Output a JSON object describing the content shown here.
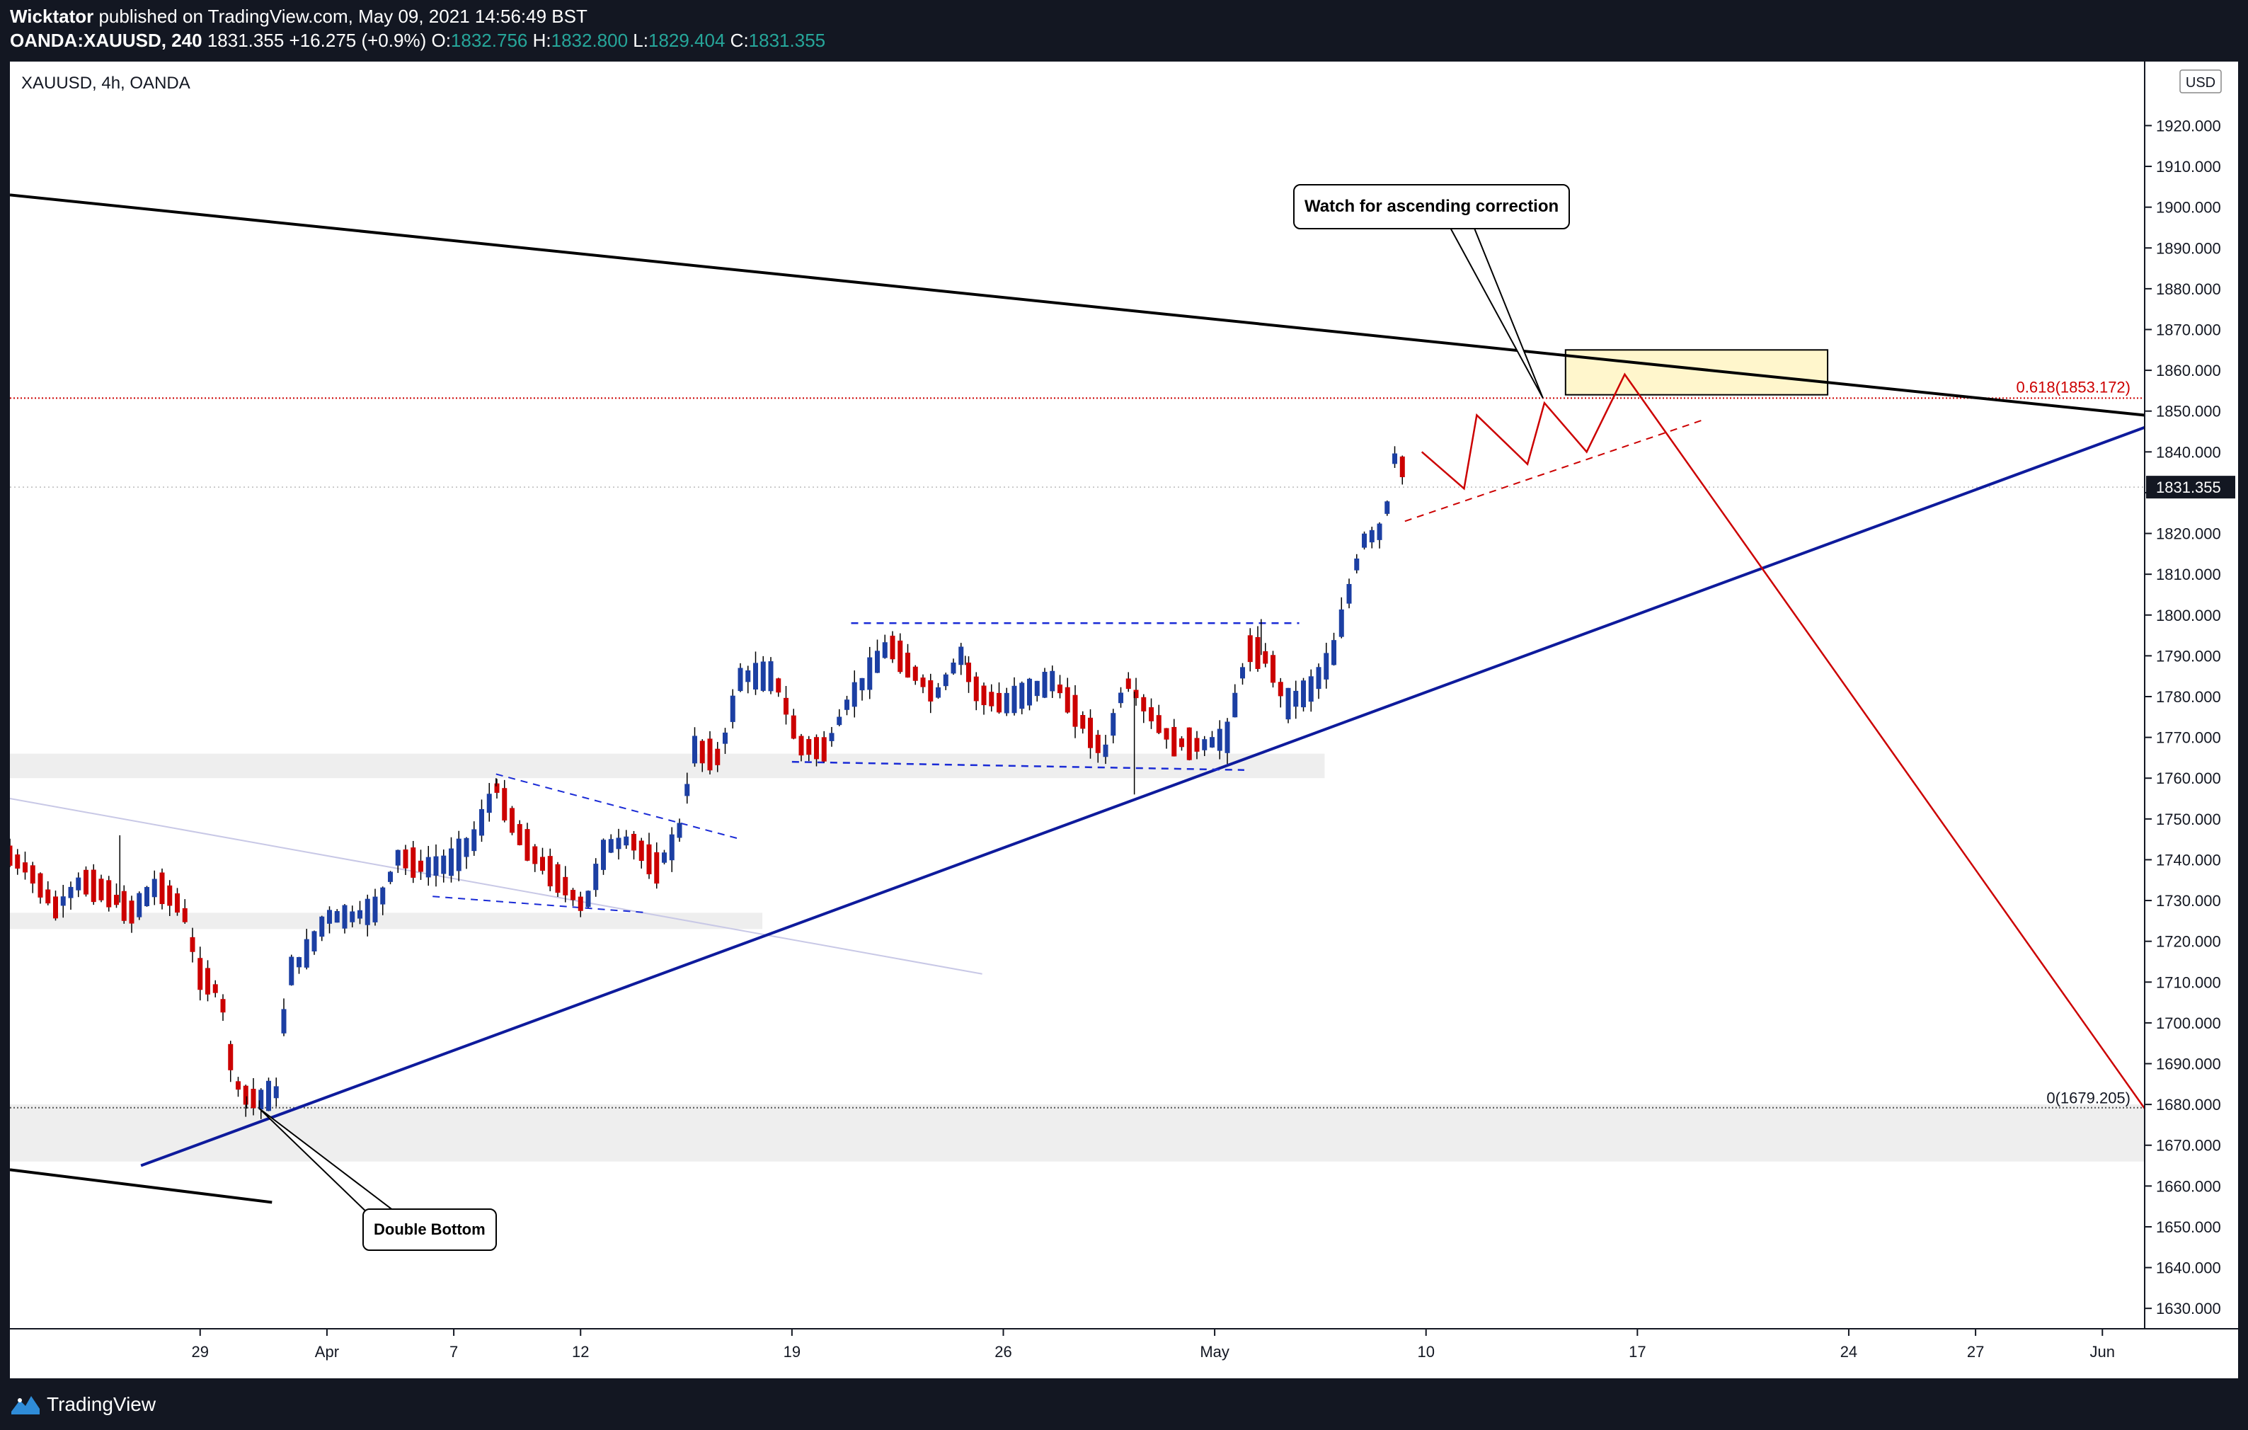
{
  "header": {
    "author": "Wicktator",
    "published_text": " published on TradingView.com, May 09, 2021 14:56:49 BST",
    "symbol": "OANDA:XAUUSD, 240",
    "last": "1831.355",
    "change": "+16.275 (+0.9%)",
    "o_label": "O:",
    "o_value": "1832.756",
    "h_label": "H:",
    "h_value": "1832.800",
    "l_label": "L:",
    "l_value": "1829.404",
    "c_label": "C:",
    "c_value": "1831.355"
  },
  "chart_title": "XAUUSD, 4h, OANDA",
  "currency_badge": "USD",
  "price_label": "1831.355",
  "fib_labels": {
    "top": "0.618(1853.172)",
    "bottom": "0(1679.205)"
  },
  "annotations": {
    "top": "Watch for ascending correction",
    "bottom": "Double Bottom"
  },
  "footer": {
    "brand": "TradingView"
  },
  "colors": {
    "up": "#1c3fa3",
    "down": "#cc0000",
    "trend": "#0e1b9c",
    "fib": "#cc0000",
    "zone": "#fff6cc"
  },
  "chart_data": {
    "type": "candlestick",
    "title": "XAUUSD, 4h, OANDA",
    "ylim": [
      1625,
      1935
    ],
    "y_ticks": [
      1630,
      1640,
      1650,
      1660,
      1670,
      1680,
      1690,
      1700,
      1710,
      1720,
      1730,
      1740,
      1750,
      1760,
      1770,
      1780,
      1790,
      1800,
      1810,
      1820,
      1830,
      1840,
      1850,
      1860,
      1870,
      1880,
      1890,
      1900,
      1910,
      1920
    ],
    "x_ticks": [
      "29",
      "Apr",
      "7",
      "12",
      "19",
      "26",
      "May",
      "10",
      "17",
      "24",
      "27",
      "Jun"
    ],
    "x_tick_days": [
      5,
      8,
      11,
      14,
      19,
      24,
      29,
      34,
      39,
      44,
      47,
      50
    ],
    "xlim": [
      0.5,
      51
    ],
    "last_price": 1831.355,
    "fib_levels": [
      {
        "label": "0.618(1853.172)",
        "value": 1853.172
      },
      {
        "label": "0(1679.205)",
        "value": 1679.205
      }
    ],
    "path": [
      [
        0.5,
        1741
      ],
      [
        1.0,
        1737
      ],
      [
        1.6,
        1728
      ],
      [
        2.2,
        1735
      ],
      [
        2.8,
        1732
      ],
      [
        3.4,
        1727
      ],
      [
        4.0,
        1734
      ],
      [
        4.6,
        1728
      ],
      [
        5.0,
        1712
      ],
      [
        5.5,
        1707
      ],
      [
        5.8,
        1686
      ],
      [
        6.1,
        1682
      ],
      [
        6.4,
        1681
      ],
      [
        6.8,
        1683
      ],
      [
        7.1,
        1712
      ],
      [
        7.6,
        1718
      ],
      [
        8.0,
        1726
      ],
      [
        8.6,
        1726
      ],
      [
        9.2,
        1728
      ],
      [
        9.7,
        1741
      ],
      [
        10.3,
        1738
      ],
      [
        10.9,
        1739
      ],
      [
        11.5,
        1745
      ],
      [
        12.0,
        1758
      ],
      [
        12.5,
        1747
      ],
      [
        13.0,
        1740
      ],
      [
        13.6,
        1734
      ],
      [
        14.1,
        1728
      ],
      [
        14.6,
        1743
      ],
      [
        15.2,
        1745
      ],
      [
        15.8,
        1738
      ],
      [
        16.3,
        1745
      ],
      [
        16.7,
        1767
      ],
      [
        17.3,
        1765
      ],
      [
        17.8,
        1785
      ],
      [
        18.6,
        1785
      ],
      [
        19.2,
        1768
      ],
      [
        19.8,
        1767
      ],
      [
        20.3,
        1778
      ],
      [
        20.8,
        1785
      ],
      [
        21.3,
        1793
      ],
      [
        21.8,
        1787
      ],
      [
        22.4,
        1780
      ],
      [
        23.0,
        1790
      ],
      [
        23.4,
        1781
      ],
      [
        24.0,
        1778
      ],
      [
        24.6,
        1781
      ],
      [
        25.2,
        1784
      ],
      [
        25.8,
        1775
      ],
      [
        26.4,
        1766
      ],
      [
        26.9,
        1784
      ],
      [
        27.4,
        1777
      ],
      [
        28.0,
        1769
      ],
      [
        28.7,
        1768
      ],
      [
        29.3,
        1770
      ],
      [
        29.8,
        1792
      ],
      [
        30.3,
        1789
      ],
      [
        30.7,
        1778
      ],
      [
        31.3,
        1782
      ],
      [
        31.8,
        1790
      ],
      [
        32.5,
        1818
      ],
      [
        33.0,
        1821
      ],
      [
        33.3,
        1841
      ],
      [
        33.6,
        1831
      ]
    ],
    "up_days": [
      7.1,
      7.6,
      8.0,
      9.0,
      9.7,
      11.5,
      12.0,
      14.6,
      16.3,
      16.7,
      17.3,
      17.8,
      20.3,
      20.8,
      21.3,
      23.0,
      25.2,
      26.9,
      28.7,
      29.3,
      29.8,
      31.3,
      31.8,
      32.5,
      33.0,
      33.3
    ],
    "wick_extremes": [
      [
        3.1,
        1746
      ],
      [
        23.1,
        1790
      ],
      [
        27.1,
        1756
      ],
      [
        30.1,
        1799
      ],
      [
        12.0,
        1760
      ],
      [
        6.1,
        1679
      ],
      [
        6.4,
        1679
      ]
    ],
    "overlays": {
      "descending_trendline": [
        [
          0.5,
          1903
        ],
        [
          51,
          1849
        ]
      ],
      "lower_black_line": [
        [
          0.5,
          1664
        ],
        [
          6.7,
          1656
        ]
      ],
      "ascending_trendline": [
        [
          3.6,
          1665
        ],
        [
          51,
          1846
        ]
      ],
      "faint_line": [
        [
          0.5,
          1755
        ],
        [
          23.5,
          1712
        ]
      ],
      "support_zones": [
        {
          "x": [
            0.5,
            31.6
          ],
          "y": [
            1760,
            1766
          ]
        },
        {
          "x": [
            0.5,
            18.3
          ],
          "y": [
            1723,
            1727
          ]
        },
        {
          "x": [
            0.5,
            51
          ],
          "y": [
            1666,
            1680
          ]
        }
      ],
      "resistance_box": {
        "x": [
          37.3,
          43.5
        ],
        "y": [
          1854,
          1865
        ]
      },
      "triangle_top": [
        [
          12.0,
          1761
        ],
        [
          17.8,
          1745
        ]
      ],
      "triangle_bottom": [
        [
          10.5,
          1731
        ],
        [
          15.6,
          1727
        ]
      ],
      "range_top": [
        [
          20.4,
          1798
        ],
        [
          31.0,
          1798
        ]
      ],
      "range_bottom": [
        [
          19.0,
          1764
        ],
        [
          29.7,
          1762
        ]
      ],
      "projection_zigzag": [
        [
          33.9,
          1840
        ],
        [
          34.9,
          1831
        ],
        [
          35.2,
          1849
        ],
        [
          36.4,
          1837
        ],
        [
          36.8,
          1852
        ],
        [
          37.8,
          1840
        ],
        [
          38.7,
          1859
        ],
        [
          51,
          1679
        ]
      ],
      "projection_channel": [
        [
          33.5,
          1823
        ],
        [
          40.6,
          1848
        ]
      ]
    }
  }
}
